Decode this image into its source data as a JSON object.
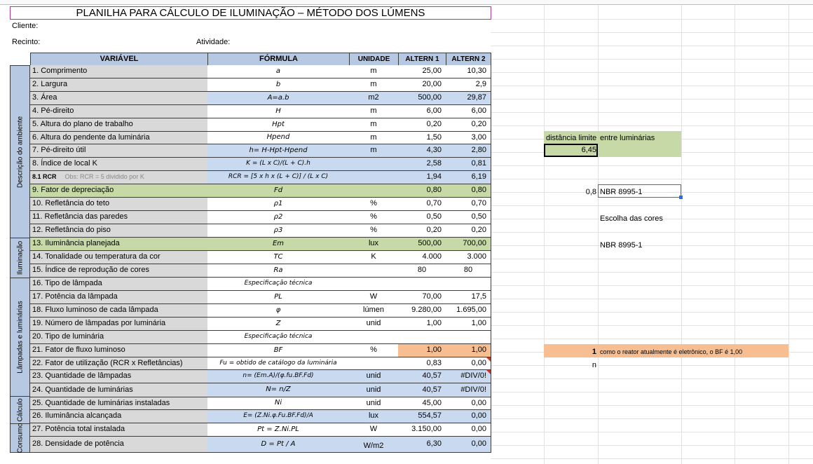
{
  "title": "PLANILHA PARA CÁLCULO DE ILUMINAÇÃO – MÉTODO DOS LÚMENS",
  "cliente_label": "Cliente:",
  "recinto_label": "Recinto:",
  "atividade_label": "Atividade:",
  "headers": {
    "variavel": "VARIÁVEL",
    "formula": "FÓRMULA",
    "unidade": "UNIDADE",
    "alt1": "ALTERN 1",
    "alt2": "ALTERN 2"
  },
  "sections": {
    "descricao": "Descrição do ambiente",
    "iluminacao": "Iluminação",
    "lampadas": "Lâmpadas e luminárias",
    "calculo": "Cálculo",
    "consumo": "Consumo"
  },
  "rows": [
    {
      "var": "1. Comprimento",
      "formula": "a",
      "unit": "m",
      "a1": "25,00",
      "a2": "10,30"
    },
    {
      "var": "2. Largura",
      "formula": "b",
      "unit": "m",
      "a1": "20,00",
      "a2": "2,9"
    },
    {
      "var": "3. Área",
      "formula": "A=a.b",
      "unit": "m2",
      "a1": "500,00",
      "a2": "29,87"
    },
    {
      "var": "4. Pé-direito",
      "formula": "H",
      "unit": "m",
      "a1": "6,00",
      "a2": "6,00"
    },
    {
      "var": "5. Altura do plano de trabalho",
      "formula": "Hpt",
      "unit": "m",
      "a1": "0,20",
      "a2": "0,20"
    },
    {
      "var": "6. Altura do pendente da luminária",
      "formula": "Hpend",
      "unit": "m",
      "a1": "1,50",
      "a2": "3,00"
    },
    {
      "var": "7. Pé-direito útil",
      "formula": "h= H-Hpt-Hpend",
      "unit": "m",
      "a1": "4,30",
      "a2": "2,80"
    },
    {
      "var": "8. Índice de local K",
      "formula": "K = (L x C)/(L + C).h",
      "unit": "",
      "a1": "2,58",
      "a2": "0,81"
    },
    {
      "var": "8.1 RCR",
      "note": "Obs: RCR = 5 dividido por K",
      "formula": "RCR = [5 x h x (L + C)] / (L x C)",
      "unit": "",
      "a1": "1,94",
      "a2": "6,19"
    },
    {
      "var": "9. Fator de depreciação",
      "formula": "Fd",
      "unit": "",
      "a1": "0,80",
      "a2": "0,80"
    },
    {
      "var": "10. Refletância do teto",
      "formula": "ρ1",
      "unit": "%",
      "a1": "0,70",
      "a2": "0,70"
    },
    {
      "var": "11. Refletância das paredes",
      "formula": "ρ2",
      "unit": "%",
      "a1": "0,50",
      "a2": "0,50"
    },
    {
      "var": "12. Refletância do piso",
      "formula": "ρ3",
      "unit": "%",
      "a1": "0,20",
      "a2": "0,20"
    },
    {
      "var": "13. Iluminância planejada",
      "formula": "Em",
      "unit": "lux",
      "a1": "500,00",
      "a2": "700,00"
    },
    {
      "var": "14. Tonalidade ou temperatura da cor",
      "formula": "TC",
      "unit": "K",
      "a1": "4.000",
      "a2": "3.000"
    },
    {
      "var": "15. Índice de reprodução de cores",
      "formula": "Ra",
      "unit": "",
      "a1": "80",
      "a2": "80"
    },
    {
      "var": "16. Tipo de lâmpada",
      "formula": "Especificação técnica",
      "unit": "",
      "a1": "",
      "a2": ""
    },
    {
      "var": "17. Potência da lâmpada",
      "formula": "PL",
      "unit": "W",
      "a1": "70,00",
      "a2": "17,5"
    },
    {
      "var": "18. Fluxo luminoso de cada lâmpada",
      "formula": "φ",
      "unit": "lúmen",
      "a1": "9.280,00",
      "a2": "1.695,00"
    },
    {
      "var": "19. Número de lâmpadas por luminária",
      "formula": "Z",
      "unit": "unid",
      "a1": "1,00",
      "a2": "1,00"
    },
    {
      "var": "20. Tipo de luminária",
      "formula": "Especificação técnica",
      "unit": "",
      "a1": "",
      "a2": ""
    },
    {
      "var": "21. Fator de fluxo luminoso",
      "formula": "BF",
      "unit": "%",
      "a1": "1,00",
      "a2": "1,00"
    },
    {
      "var": "22. Fator de utilização (RCR x Refletâncias)",
      "formula": "Fu = obtido de catálogo da luminária",
      "unit": "",
      "a1": "0,83",
      "a2": "0,00"
    },
    {
      "var": "23. Quantidade de lâmpadas",
      "formula": "n= (Em.A)/(φ.fu.BF.Fd)",
      "unit": "unid",
      "a1": "40,57",
      "a2": "#DIV/0!"
    },
    {
      "var": "24. Quantidade de luminárias",
      "formula": "N=  n/Z",
      "unit": "unid",
      "a1": "40,57",
      "a2": "#DIV/0!"
    },
    {
      "var": "25. Quantidade de luminárias instaladas",
      "formula": "Ni",
      "unit": "unid",
      "a1": "45,00",
      "a2": "0,00"
    },
    {
      "var": "26. Iluminância alcançada",
      "formula": "E= (Z.Ni.φ.Fu.BF.Fd)/A",
      "unit": "lux",
      "a1": "554,57",
      "a2": "0,00"
    },
    {
      "var": "27. Potência total instalada",
      "formula": "Pt = Z.Ni.PL",
      "unit": "W",
      "a1": "3.150,00",
      "a2": "0,00"
    },
    {
      "var": "28. Densidade de potência",
      "formula": "D = Pt / A",
      "unit": "W/m2",
      "a1": "6,30",
      "a2": "0,00"
    }
  ],
  "side_notes": {
    "dist_label1": "distância limite",
    "dist_label2": "entre luminárias",
    "dist_value": "6,45",
    "fd_value": "0,8",
    "fd_norm": "NBR 8995-1",
    "cores": "Escolha das cores",
    "em_norm": "NBR 8995-1",
    "bf_value": "1",
    "bf_note": "como o reator atualmente é eletrônico, o BF é 1,00",
    "n_note": "n"
  },
  "colors": {
    "header_blue": "#b7c9e2",
    "cell_blue": "#c9daf0",
    "green": "#c6d9a7",
    "orange": "#f7be92",
    "gray": "#d9d9d9"
  }
}
